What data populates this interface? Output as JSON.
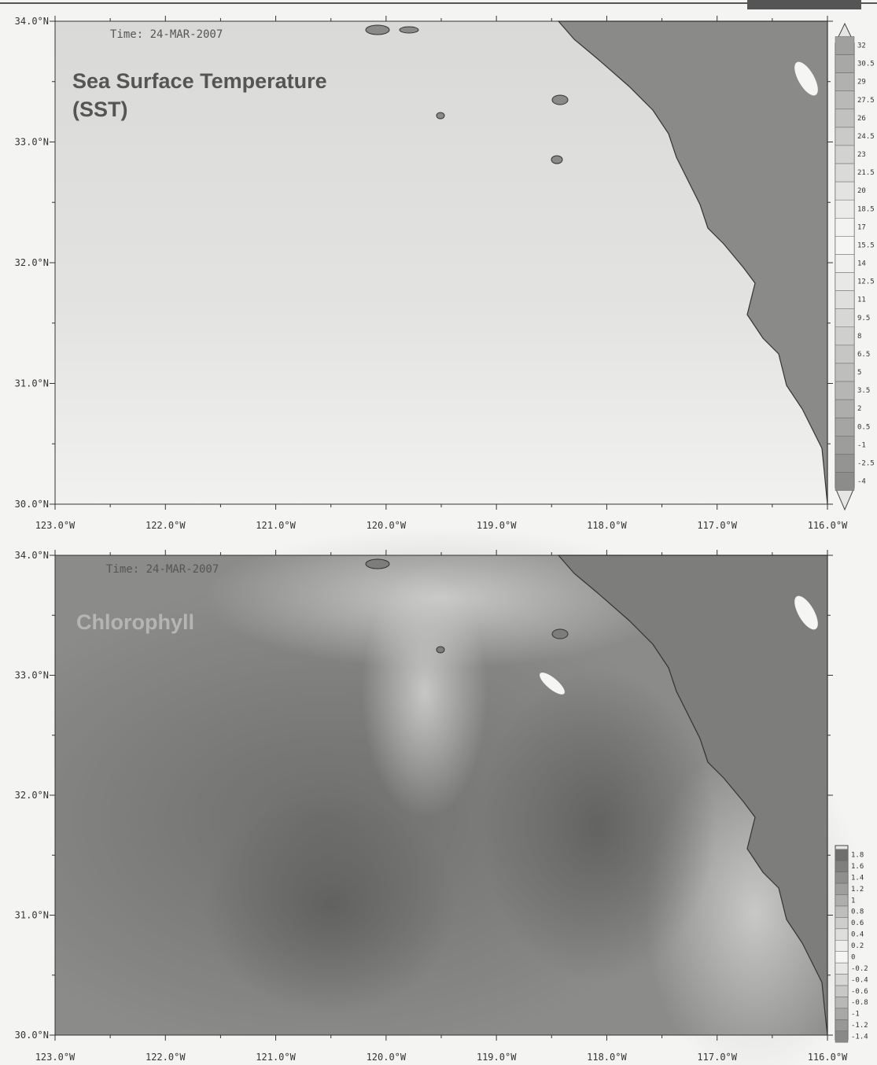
{
  "panels": [
    {
      "time": "Time: 24-MAR-2007",
      "title_lines": [
        "Sea Surface Temperature",
        "(SST)"
      ],
      "lat_ticks": [
        "34.0°N",
        "33.0°N",
        "32.0°N",
        "31.0°N",
        "30.0°N"
      ],
      "lon_ticks": [
        "123.0°W",
        "122.0°W",
        "121.0°W",
        "120.0°W",
        "119.0°W",
        "118.0°W",
        "117.0°W",
        "116.0°W"
      ],
      "colorbar_labels": [
        "32",
        "30.5",
        "29",
        "27.5",
        "26",
        "24.5",
        "23",
        "21.5",
        "20",
        "18.5",
        "17",
        "15.5",
        "14",
        "12.5",
        "11",
        "9.5",
        "8",
        "6.5",
        "5",
        "3.5",
        "2",
        "0.5",
        "-1",
        "-2.5",
        "-4"
      ]
    },
    {
      "time": "Time: 24-MAR-2007",
      "title_lines": [
        "Chlorophyll"
      ],
      "lat_ticks": [
        "34.0°N",
        "33.0°N",
        "32.0°N",
        "31.0°N",
        "30.0°N"
      ],
      "lon_ticks": [
        "123.0°W",
        "122.0°W",
        "121.0°W",
        "120.0°W",
        "119.0°W",
        "118.0°W",
        "117.0°W",
        "116.0°W"
      ],
      "colorbar_labels": [
        "1.8",
        "1.6",
        "1.4",
        "1.2",
        "1",
        "0.8",
        "0.6",
        "0.4",
        "0.2",
        "0",
        "-0.2",
        "-0.4",
        "-0.6",
        "-0.8",
        "-1",
        "-1.2",
        "-1.4"
      ]
    }
  ]
}
